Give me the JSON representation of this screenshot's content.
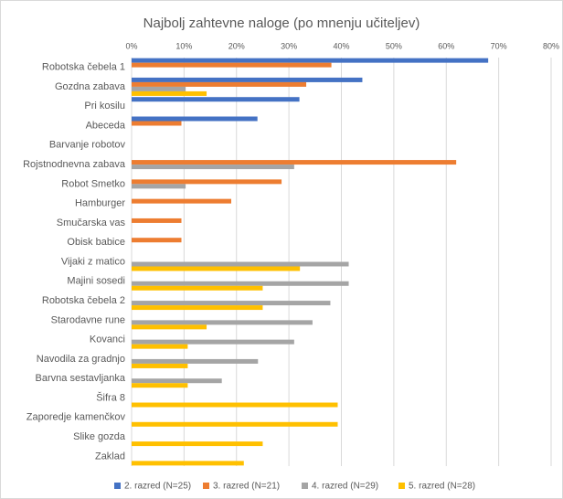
{
  "chart_data": {
    "type": "hbar",
    "title": "Najbolj zahtevne naloge (po mnenju učiteljev)",
    "categories": [
      "Robotska čebela 1",
      "Gozdna zabava",
      "Pri kosilu",
      "Abeceda",
      "Barvanje robotov",
      "Rojstnodnevna zabava",
      "Robot Smetko",
      "Hamburger",
      "Smučarska vas",
      "Obisk babice",
      "Vijaki z matico",
      "Majini sosedi",
      "Robotska čebela 2",
      "Starodavne rune",
      "Kovanci",
      "Navodila za gradnjo",
      "Barvna sestavljanka",
      "Šifra 8",
      "Zaporedje kamenčkov",
      "Slike gozda",
      "Zaklad"
    ],
    "series": [
      {
        "name": "2. razred (N=25)",
        "color": "#4472c4",
        "values": [
          68,
          44,
          32,
          24,
          null,
          null,
          null,
          null,
          null,
          null,
          null,
          null,
          null,
          null,
          null,
          null,
          null,
          null,
          null,
          null,
          null
        ]
      },
      {
        "name": "3. razred (N=21)",
        "color": "#ed7d31",
        "values": [
          38.1,
          33.3,
          null,
          9.5,
          null,
          61.9,
          28.6,
          19,
          9.5,
          9.5,
          null,
          null,
          null,
          null,
          null,
          null,
          null,
          null,
          null,
          null,
          null
        ]
      },
      {
        "name": "4. razred (N=29)",
        "color": "#a5a5a5",
        "values": [
          null,
          10.3,
          null,
          null,
          null,
          31,
          10.3,
          null,
          null,
          null,
          41.4,
          41.4,
          37.9,
          34.5,
          31,
          24.1,
          17.2,
          null,
          null,
          null,
          null
        ]
      },
      {
        "name": "5. razred (N=28)",
        "color": "#ffc000",
        "values": [
          null,
          14.3,
          null,
          null,
          null,
          null,
          null,
          null,
          null,
          null,
          32.1,
          25,
          25,
          14.3,
          10.7,
          10.7,
          10.7,
          39.3,
          39.3,
          25,
          21.4
        ]
      }
    ],
    "xlim": [
      0,
      80
    ],
    "xticks": [
      {
        "value": 0,
        "label": "0%"
      },
      {
        "value": 10,
        "label": "10%"
      },
      {
        "value": 20,
        "label": "20%"
      },
      {
        "value": 30,
        "label": "30%"
      },
      {
        "value": 40,
        "label": "40%"
      },
      {
        "value": 50,
        "label": "50%"
      },
      {
        "value": 60,
        "label": "60%"
      },
      {
        "value": 70,
        "label": "70%"
      },
      {
        "value": 80,
        "label": "80%"
      }
    ],
    "grid": true,
    "legend": "bottom"
  }
}
